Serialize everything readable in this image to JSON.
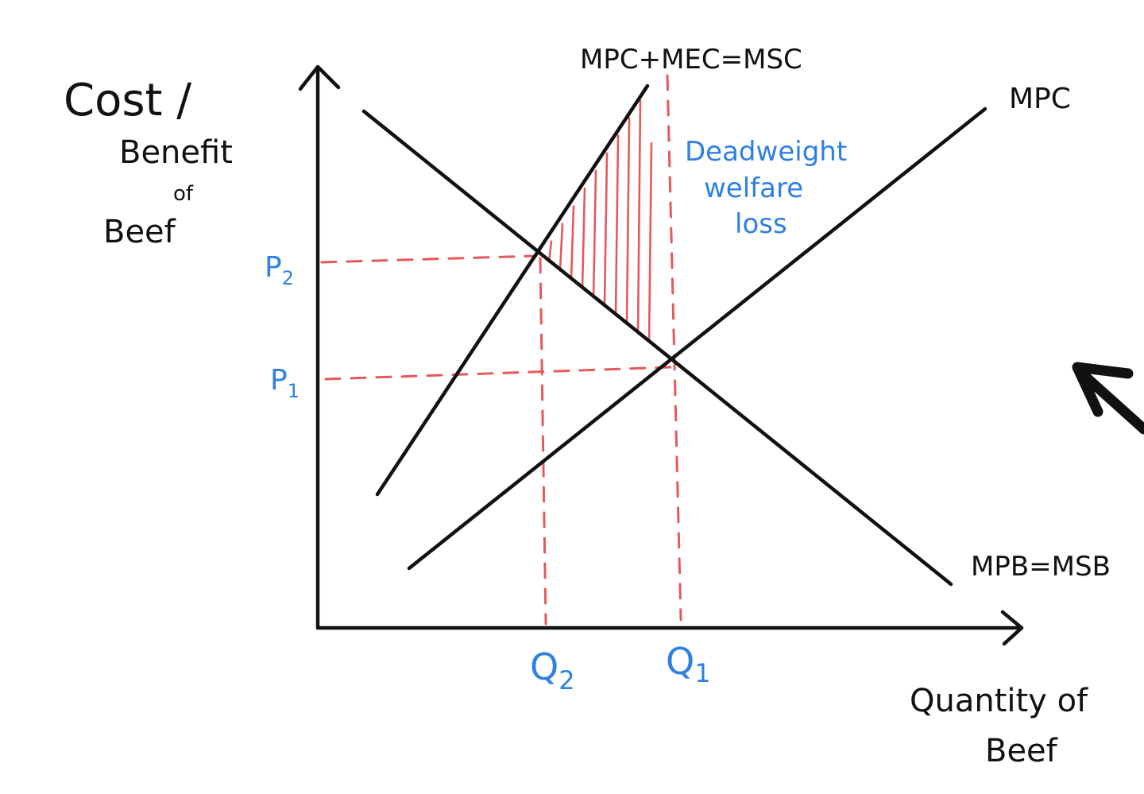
{
  "y_axis_label": [
    "Cost /",
    "Benefit",
    "of",
    "Beef"
  ],
  "x_axis_label": [
    "Quantity of",
    "Beef"
  ],
  "curves": {
    "msc": "MPC+MEC=MSC",
    "mpc": "MPC",
    "demand": "MPB=MSB"
  },
  "price_labels": {
    "p2": "P",
    "p2_sub": "2",
    "p1": "P",
    "p1_sub": "1"
  },
  "quantity_labels": {
    "q2": "Q",
    "q2_sub": "2",
    "q1": "Q",
    "q1_sub": "1"
  },
  "annotation": [
    "Deadweight",
    "welfare",
    "loss"
  ],
  "colors": {
    "ink": "#111111",
    "label_blue": "#2f7fe6",
    "welfare_red": "#e45a5a"
  },
  "icons": {
    "pointer": "arrow-icon"
  }
}
